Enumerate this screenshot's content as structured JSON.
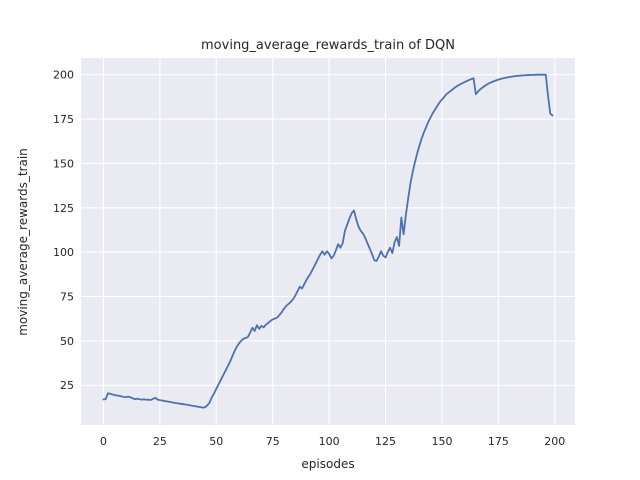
{
  "figure": {
    "title": "moving_average_rewards_train of DQN",
    "xlabel": "episodes",
    "ylabel": "moving_average_rewards_train"
  },
  "chart_data": {
    "type": "line",
    "title": "moving_average_rewards_train of DQN",
    "xlabel": "episodes",
    "ylabel": "moving_average_rewards_train",
    "x_ticks": [
      0,
      25,
      50,
      75,
      100,
      125,
      150,
      175,
      200
    ],
    "y_ticks": [
      25,
      50,
      75,
      100,
      125,
      150,
      175,
      200
    ],
    "xlim": [
      -9.95,
      208.95
    ],
    "ylim": [
      2.6,
      209.4
    ],
    "grid": true,
    "legend": null,
    "style": {
      "line_color": "#4c72b0",
      "axes_bg": "#eaeaf2",
      "grid_color": "#ffffff",
      "figure_bg": "#ffffff",
      "text_color": "#262626"
    },
    "series": [
      {
        "name": "moving_average_rewards_train",
        "x_start": 0,
        "x_step": 1,
        "values": [
          17.0,
          17.2,
          20.5,
          20.2,
          19.8,
          19.5,
          19.2,
          19.0,
          18.7,
          18.4,
          18.3,
          18.6,
          18.2,
          17.6,
          17.2,
          17.4,
          17.1,
          16.9,
          17.1,
          16.8,
          16.9,
          16.7,
          17.4,
          17.9,
          16.9,
          16.6,
          16.4,
          16.1,
          15.9,
          15.7,
          15.5,
          15.2,
          15.0,
          14.8,
          14.6,
          14.4,
          14.2,
          14.0,
          13.8,
          13.5,
          13.3,
          13.1,
          12.9,
          12.7,
          12.4,
          12.6,
          13.6,
          15.2,
          18.2,
          20.3,
          23.0,
          25.5,
          28.0,
          30.5,
          33.0,
          35.5,
          38.0,
          41.0,
          44.0,
          46.5,
          48.5,
          50.0,
          51.2,
          51.6,
          52.2,
          54.6,
          57.4,
          55.6,
          58.8,
          56.8,
          58.5,
          57.6,
          59.2,
          60.1,
          61.2,
          62.1,
          62.6,
          63.2,
          64.6,
          66.2,
          68.1,
          69.7,
          70.8,
          72.0,
          73.5,
          75.5,
          78.0,
          80.5,
          79.5,
          82.0,
          84.5,
          86.5,
          88.5,
          91.0,
          93.5,
          96.0,
          98.5,
          100.5,
          98.5,
          100.5,
          99.0,
          96.5,
          98.0,
          101.0,
          104.5,
          102.5,
          105.0,
          112.0,
          115.5,
          119.0,
          122.0,
          123.5,
          118.5,
          114.5,
          112.0,
          110.5,
          108.0,
          105.0,
          102.0,
          99.0,
          95.5,
          95.0,
          97.5,
          100.5,
          98.0,
          97.0,
          100.0,
          102.5,
          99.5,
          105.5,
          108.5,
          103.5,
          119.5,
          110.0,
          121.0,
          130.0,
          138.5,
          145.0,
          150.5,
          155.5,
          160.0,
          164.0,
          167.5,
          170.5,
          173.5,
          176.0,
          178.5,
          180.5,
          182.5,
          184.5,
          186.0,
          187.5,
          189.0,
          190.0,
          191.0,
          192.0,
          193.0,
          193.8,
          194.5,
          195.2,
          195.8,
          196.4,
          197.0,
          197.5,
          198.0,
          189.0,
          190.5,
          191.8,
          192.8,
          193.7,
          194.5,
          195.2,
          195.8,
          196.3,
          196.8,
          197.2,
          197.6,
          197.9,
          198.2,
          198.5,
          198.7,
          198.9,
          199.1,
          199.3,
          199.4,
          199.5,
          199.6,
          199.7,
          199.8,
          199.8,
          199.9,
          199.9,
          200.0,
          200.0,
          200.0,
          200.0,
          200.0,
          188.0,
          178.0,
          177.0
        ]
      }
    ]
  }
}
